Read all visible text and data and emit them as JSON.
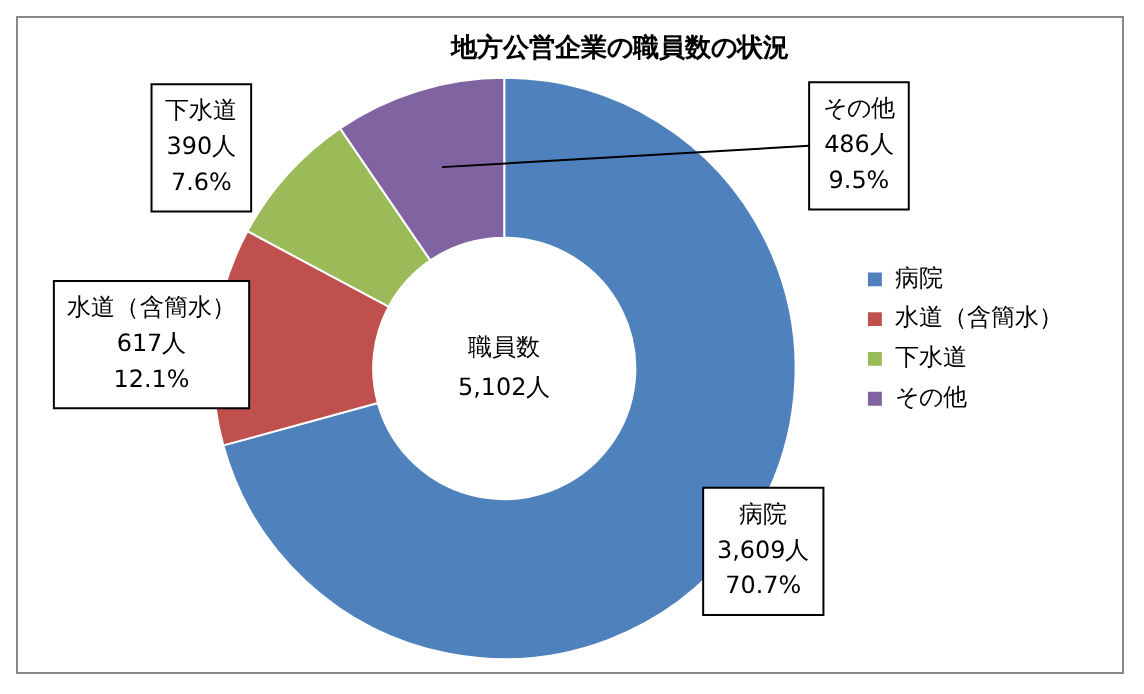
{
  "chart_data": {
    "type": "donut",
    "title": "地方公営企業の職員数の状況",
    "categories": [
      "病院",
      "水道（含簡水）",
      "下水道",
      "その他"
    ],
    "values": [
      3609,
      617,
      390,
      486
    ],
    "value_labels": [
      "3,609人\n70.7%",
      "617人\n12.1%",
      "390人\n7.6%",
      "486人\n9.5%"
    ],
    "colors": [
      "#4f81bd",
      "#c0504d",
      "#9bbb59",
      "#8064a2"
    ],
    "annotations": [
      "職員数",
      "5,102人"
    ],
    "legend": "right"
  }
}
